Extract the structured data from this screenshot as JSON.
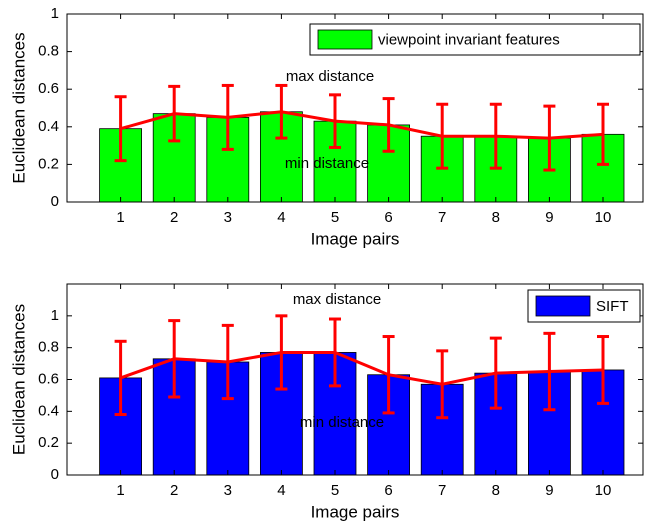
{
  "chart_data": [
    {
      "type": "bar",
      "x_label": "Image pairs",
      "y_label": "Euclidean distances",
      "categories": [
        "1",
        "2",
        "3",
        "4",
        "5",
        "6",
        "7",
        "8",
        "9",
        "10"
      ],
      "series": [
        {
          "name": "viewpoint invariant features",
          "color": "#00ff00",
          "values": [
            0.39,
            0.47,
            0.45,
            0.48,
            0.43,
            0.41,
            0.35,
            0.35,
            0.34,
            0.36
          ],
          "errors": [
            0.17,
            0.145,
            0.17,
            0.14,
            0.14,
            0.14,
            0.17,
            0.17,
            0.17,
            0.16
          ]
        }
      ],
      "line_color": "#ff0000",
      "ylim": [
        0,
        1
      ],
      "yticks": [
        0,
        0.2,
        0.4,
        0.6,
        0.8,
        1
      ],
      "annotations": [
        "max distance",
        "min distance"
      ],
      "legend": "upper right"
    },
    {
      "type": "bar",
      "x_label": "Image pairs",
      "y_label": "Euclidean distances",
      "categories": [
        "1",
        "2",
        "3",
        "4",
        "5",
        "6",
        "7",
        "8",
        "9",
        "10"
      ],
      "series": [
        {
          "name": "SIFT",
          "color": "#0000ff",
          "values": [
            0.61,
            0.73,
            0.71,
            0.77,
            0.77,
            0.63,
            0.57,
            0.64,
            0.65,
            0.66
          ],
          "errors": [
            0.23,
            0.24,
            0.23,
            0.23,
            0.21,
            0.24,
            0.21,
            0.22,
            0.24,
            0.21
          ]
        }
      ],
      "line_color": "#ff0000",
      "ylim": [
        0,
        1.2
      ],
      "yticks": [
        0,
        0.2,
        0.4,
        0.6,
        0.8,
        1
      ],
      "annotations": [
        "max distance",
        "min distance"
      ],
      "legend": "upper right"
    }
  ]
}
